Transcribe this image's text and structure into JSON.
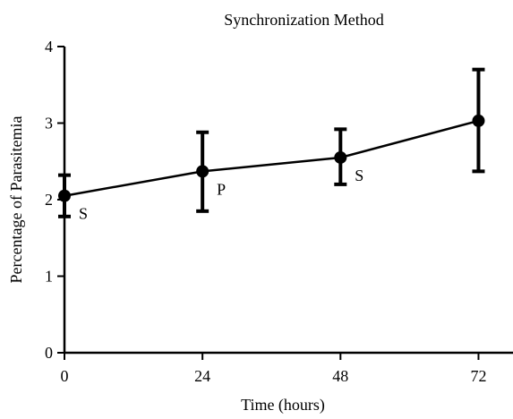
{
  "chart_data": {
    "type": "line",
    "title": "Synchronization Method",
    "xlabel": "Time (hours)",
    "ylabel": "Percentage of Parasitemia",
    "x": [
      0,
      24,
      48,
      72
    ],
    "x_ticks": [
      0,
      24,
      48,
      72
    ],
    "y_ticks": [
      0,
      1,
      2,
      3,
      4
    ],
    "xlim": [
      0,
      78
    ],
    "ylim": [
      0,
      4
    ],
    "grid": false,
    "series": [
      {
        "values": [
          2.05,
          2.37,
          2.55,
          3.03
        ],
        "error_low": [
          1.78,
          1.85,
          2.2,
          2.37
        ],
        "error_high": [
          2.32,
          2.88,
          2.92,
          3.7
        ],
        "color": "#000000"
      }
    ],
    "annotations": [
      {
        "text": "S",
        "x": 0,
        "y": 2.05
      },
      {
        "text": "P",
        "x": 24,
        "y": 2.37
      },
      {
        "text": "S",
        "x": 48,
        "y": 2.55
      }
    ]
  }
}
